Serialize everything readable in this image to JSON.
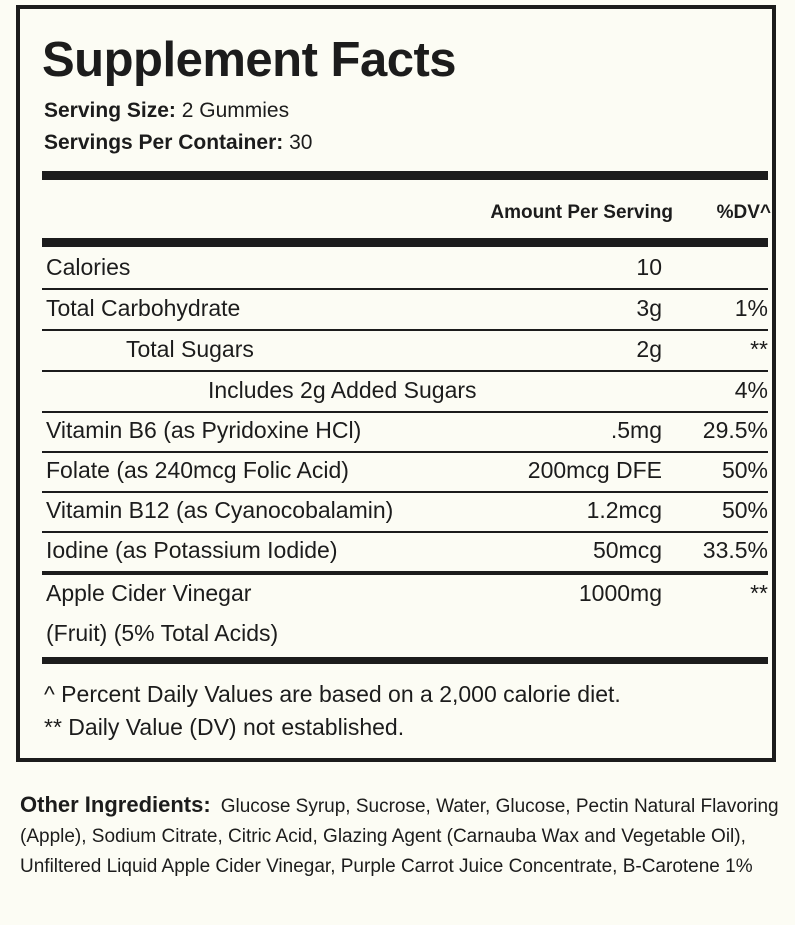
{
  "title": "Supplement Facts",
  "serving_size_label": "Serving Size:",
  "serving_size_value": "2 Gummies",
  "servings_label": "Servings Per Container:",
  "servings_value": "30",
  "header": {
    "amount": "Amount Per Serving",
    "dv": "%DV^"
  },
  "rows": [
    {
      "name": "Calories",
      "amount": "10",
      "dv": ""
    },
    {
      "name": "Total Carbohydrate",
      "amount": "3g",
      "dv": "1%"
    },
    {
      "name": "Total Sugars",
      "amount": "2g",
      "dv": "**"
    },
    {
      "name": "Includes 2g Added Sugars",
      "amount": "",
      "dv": "4%"
    },
    {
      "name": "Vitamin B6 (as Pyridoxine HCl)",
      "amount": ".5mg",
      "dv": "29.5%"
    },
    {
      "name": "Folate (as 240mcg Folic Acid)",
      "amount": "200mcg DFE",
      "dv": "50%"
    },
    {
      "name": "Vitamin B12 (as Cyanocobalamin)",
      "amount": "1.2mcg",
      "dv": "50%"
    },
    {
      "name": "Iodine (as Potassium Iodide)",
      "amount": "50mcg",
      "dv": "33.5%"
    },
    {
      "name": "Apple Cider Vinegar",
      "name2": "(Fruit) (5% Total Acids)",
      "amount": "1000mg",
      "dv": "**"
    }
  ],
  "footnotes": [
    "^ Percent Daily Values are based on a 2,000 calorie diet.",
    "** Daily Value (DV) not established."
  ],
  "other_ingredients_label": "Other Ingredients:",
  "other_ingredients": "Glucose Syrup, Sucrose, Water, Glucose, Pectin Natural Flavoring (Apple), Sodium Citrate, Citric Acid, Glazing Agent (Carnauba Wax and Vegetable Oil), Unfiltered Liquid Apple Cider Vinegar, Purple Carrot Juice Concentrate, B-Carotene 1%"
}
